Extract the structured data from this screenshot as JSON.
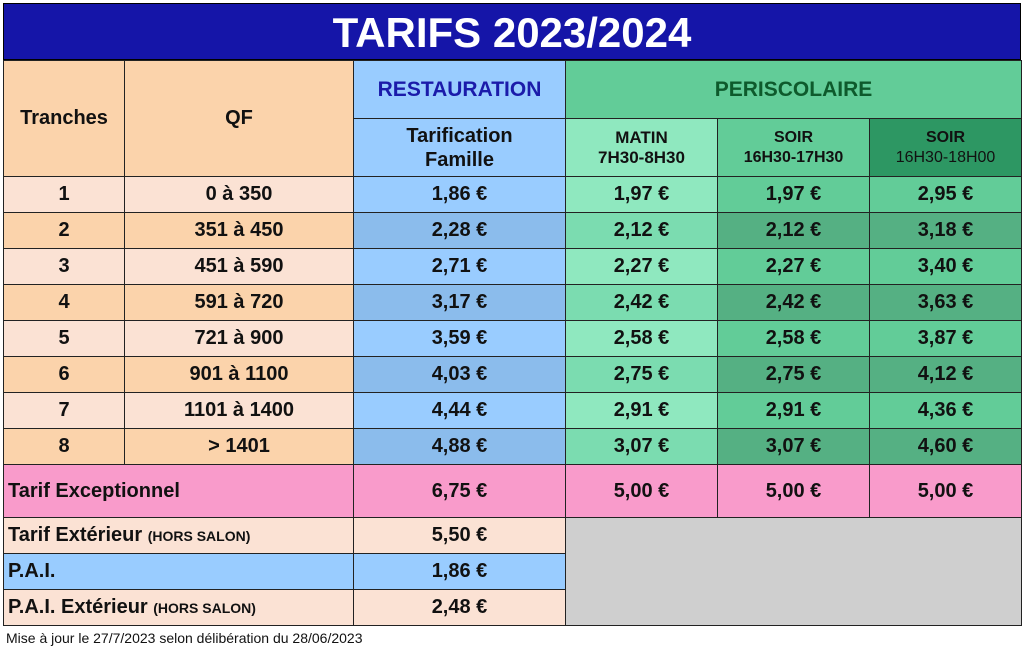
{
  "title": "TARIFS 2023/2024",
  "headers": {
    "tranches": "Tranches",
    "qf": "QF",
    "restauration": "RESTAURATION",
    "periscolaire": "PERISCOLAIRE",
    "tarification_line1": "Tarification",
    "tarification_line2": "Famille",
    "matin_line1": "MATIN",
    "matin_line2": "7H30-8H30",
    "soir1_line1": "SOIR",
    "soir1_line2": "16H30-17H30",
    "soir2_line1": "SOIR",
    "soir2_line2": "16H30-18H00"
  },
  "rows": [
    {
      "tranche": "1",
      "qf": "0 à 350",
      "rest": "1,86 €",
      "matin": "1,97 €",
      "soir1": "1,97 €",
      "soir2": "2,95 €"
    },
    {
      "tranche": "2",
      "qf": "351 à 450",
      "rest": "2,28 €",
      "matin": "2,12 €",
      "soir1": "2,12 €",
      "soir2": "3,18 €"
    },
    {
      "tranche": "3",
      "qf": "451 à 590",
      "rest": "2,71 €",
      "matin": "2,27 €",
      "soir1": "2,27 €",
      "soir2": "3,40 €"
    },
    {
      "tranche": "4",
      "qf": "591 à 720",
      "rest": "3,17 €",
      "matin": "2,42 €",
      "soir1": "2,42 €",
      "soir2": "3,63 €"
    },
    {
      "tranche": "5",
      "qf": "721 à 900",
      "rest": "3,59 €",
      "matin": "2,58 €",
      "soir1": "2,58 €",
      "soir2": "3,87 €"
    },
    {
      "tranche": "6",
      "qf": "901 à 1100",
      "rest": "4,03 €",
      "matin": "2,75 €",
      "soir1": "2,75 €",
      "soir2": "4,12 €"
    },
    {
      "tranche": "7",
      "qf": "1101 à 1400",
      "rest": "4,44 €",
      "matin": "2,91 €",
      "soir1": "2,91 €",
      "soir2": "4,36 €"
    },
    {
      "tranche": "8",
      "qf": "> 1401",
      "rest": "4,88 €",
      "matin": "3,07 €",
      "soir1": "3,07 €",
      "soir2": "4,60 €"
    }
  ],
  "exceptionnel": {
    "label": "Tarif Exceptionnel",
    "rest": "6,75 €",
    "matin": "5,00 €",
    "soir1": "5,00 €",
    "soir2": "5,00 €"
  },
  "exterieur": {
    "label": "Tarif Extérieur",
    "note": "(HORS SALON)",
    "rest": "5,50 €"
  },
  "pai": {
    "label": "P.A.I.",
    "rest": "1,86 €"
  },
  "pai_ext": {
    "label": "P.A.I. Extérieur",
    "note": "(HORS SALON)",
    "rest": "2,48 €"
  },
  "footer": "Mise à jour le 27/7/2023 selon délibération du 28/06/2023",
  "colors": {
    "title_bg": "#1515a8",
    "peach": "#fbd3ab",
    "blue": "#99ccff",
    "green": "#62cc98",
    "pink": "#f99bcb"
  }
}
